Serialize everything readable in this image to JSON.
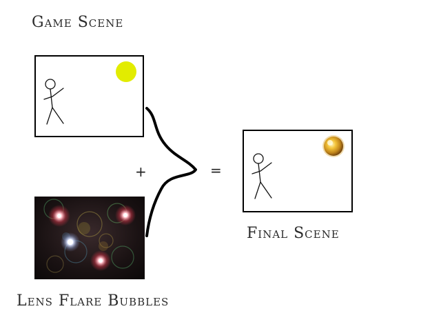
{
  "captions": {
    "game_scene": "Game Scene",
    "final_scene": "Final Scene",
    "lens_flare": "Lens Flare Bubbles"
  },
  "operators": {
    "plus": "+",
    "equals": "="
  },
  "colors": {
    "sun": "#e2ec00",
    "flare_sun": "#d39a1b",
    "flare_background": "#140f10",
    "panel_border": "#000000"
  },
  "icons": {
    "figure": "stick-figure-icon",
    "sun": "sun-icon",
    "flare_sun": "flare-sun-icon",
    "brace": "curly-brace"
  }
}
